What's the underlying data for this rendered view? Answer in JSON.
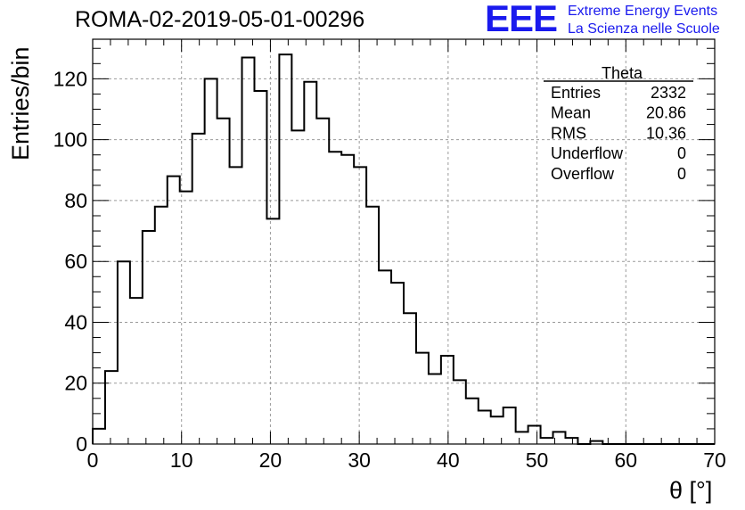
{
  "title": "ROMA-02-2019-05-01-00296",
  "logo": {
    "mark": "EEE",
    "line1": "Extreme Energy Events",
    "line2": "La Scienza nelle Scuole",
    "color": "#1a1aee"
  },
  "stats_box": {
    "name": "Theta",
    "rows": [
      {
        "label": "Entries",
        "value": "2332"
      },
      {
        "label": "Mean",
        "value": "20.86"
      },
      {
        "label": "RMS",
        "value": "10.36"
      },
      {
        "label": "Underflow",
        "value": "0"
      },
      {
        "label": "Overflow",
        "value": "0"
      }
    ]
  },
  "chart_data": {
    "type": "bar",
    "style": "step-histogram",
    "title": "ROMA-02-2019-05-01-00296",
    "xlabel": "θ [°]",
    "ylabel": "Entries/bin",
    "xlim": [
      0,
      70
    ],
    "ylim": [
      0,
      133
    ],
    "grid": true,
    "xticks": [
      0,
      10,
      20,
      30,
      40,
      50,
      60,
      70
    ],
    "yticks": [
      0,
      20,
      40,
      60,
      80,
      100,
      120
    ],
    "bin_edges": [
      0,
      1.4,
      2.8,
      4.2,
      5.6,
      7,
      8.4,
      9.8,
      11.2,
      12.6,
      14,
      15.4,
      16.8,
      18.2,
      19.6,
      21,
      22.4,
      23.8,
      25.2,
      26.6,
      28,
      29.4,
      30.8,
      32.2,
      33.6,
      35,
      36.4,
      37.8,
      39.2,
      40.6,
      42,
      43.4,
      44.8,
      46.2,
      47.6,
      49,
      50.4,
      51.8,
      53.2,
      54.6,
      56,
      57.4,
      58.8,
      60.2,
      61.6,
      63,
      64.4,
      65.8,
      67.2,
      68.6,
      70
    ],
    "values": [
      5,
      24,
      60,
      48,
      70,
      78,
      88,
      83,
      102,
      120,
      107,
      91,
      127,
      116,
      74,
      128,
      103,
      119,
      107,
      96,
      95,
      91,
      78,
      57,
      53,
      43,
      30,
      23,
      29,
      21,
      15,
      11,
      9,
      12,
      4,
      6,
      2,
      4,
      2,
      0,
      1,
      0,
      0,
      0,
      0,
      0,
      0,
      0,
      0,
      0
    ]
  }
}
